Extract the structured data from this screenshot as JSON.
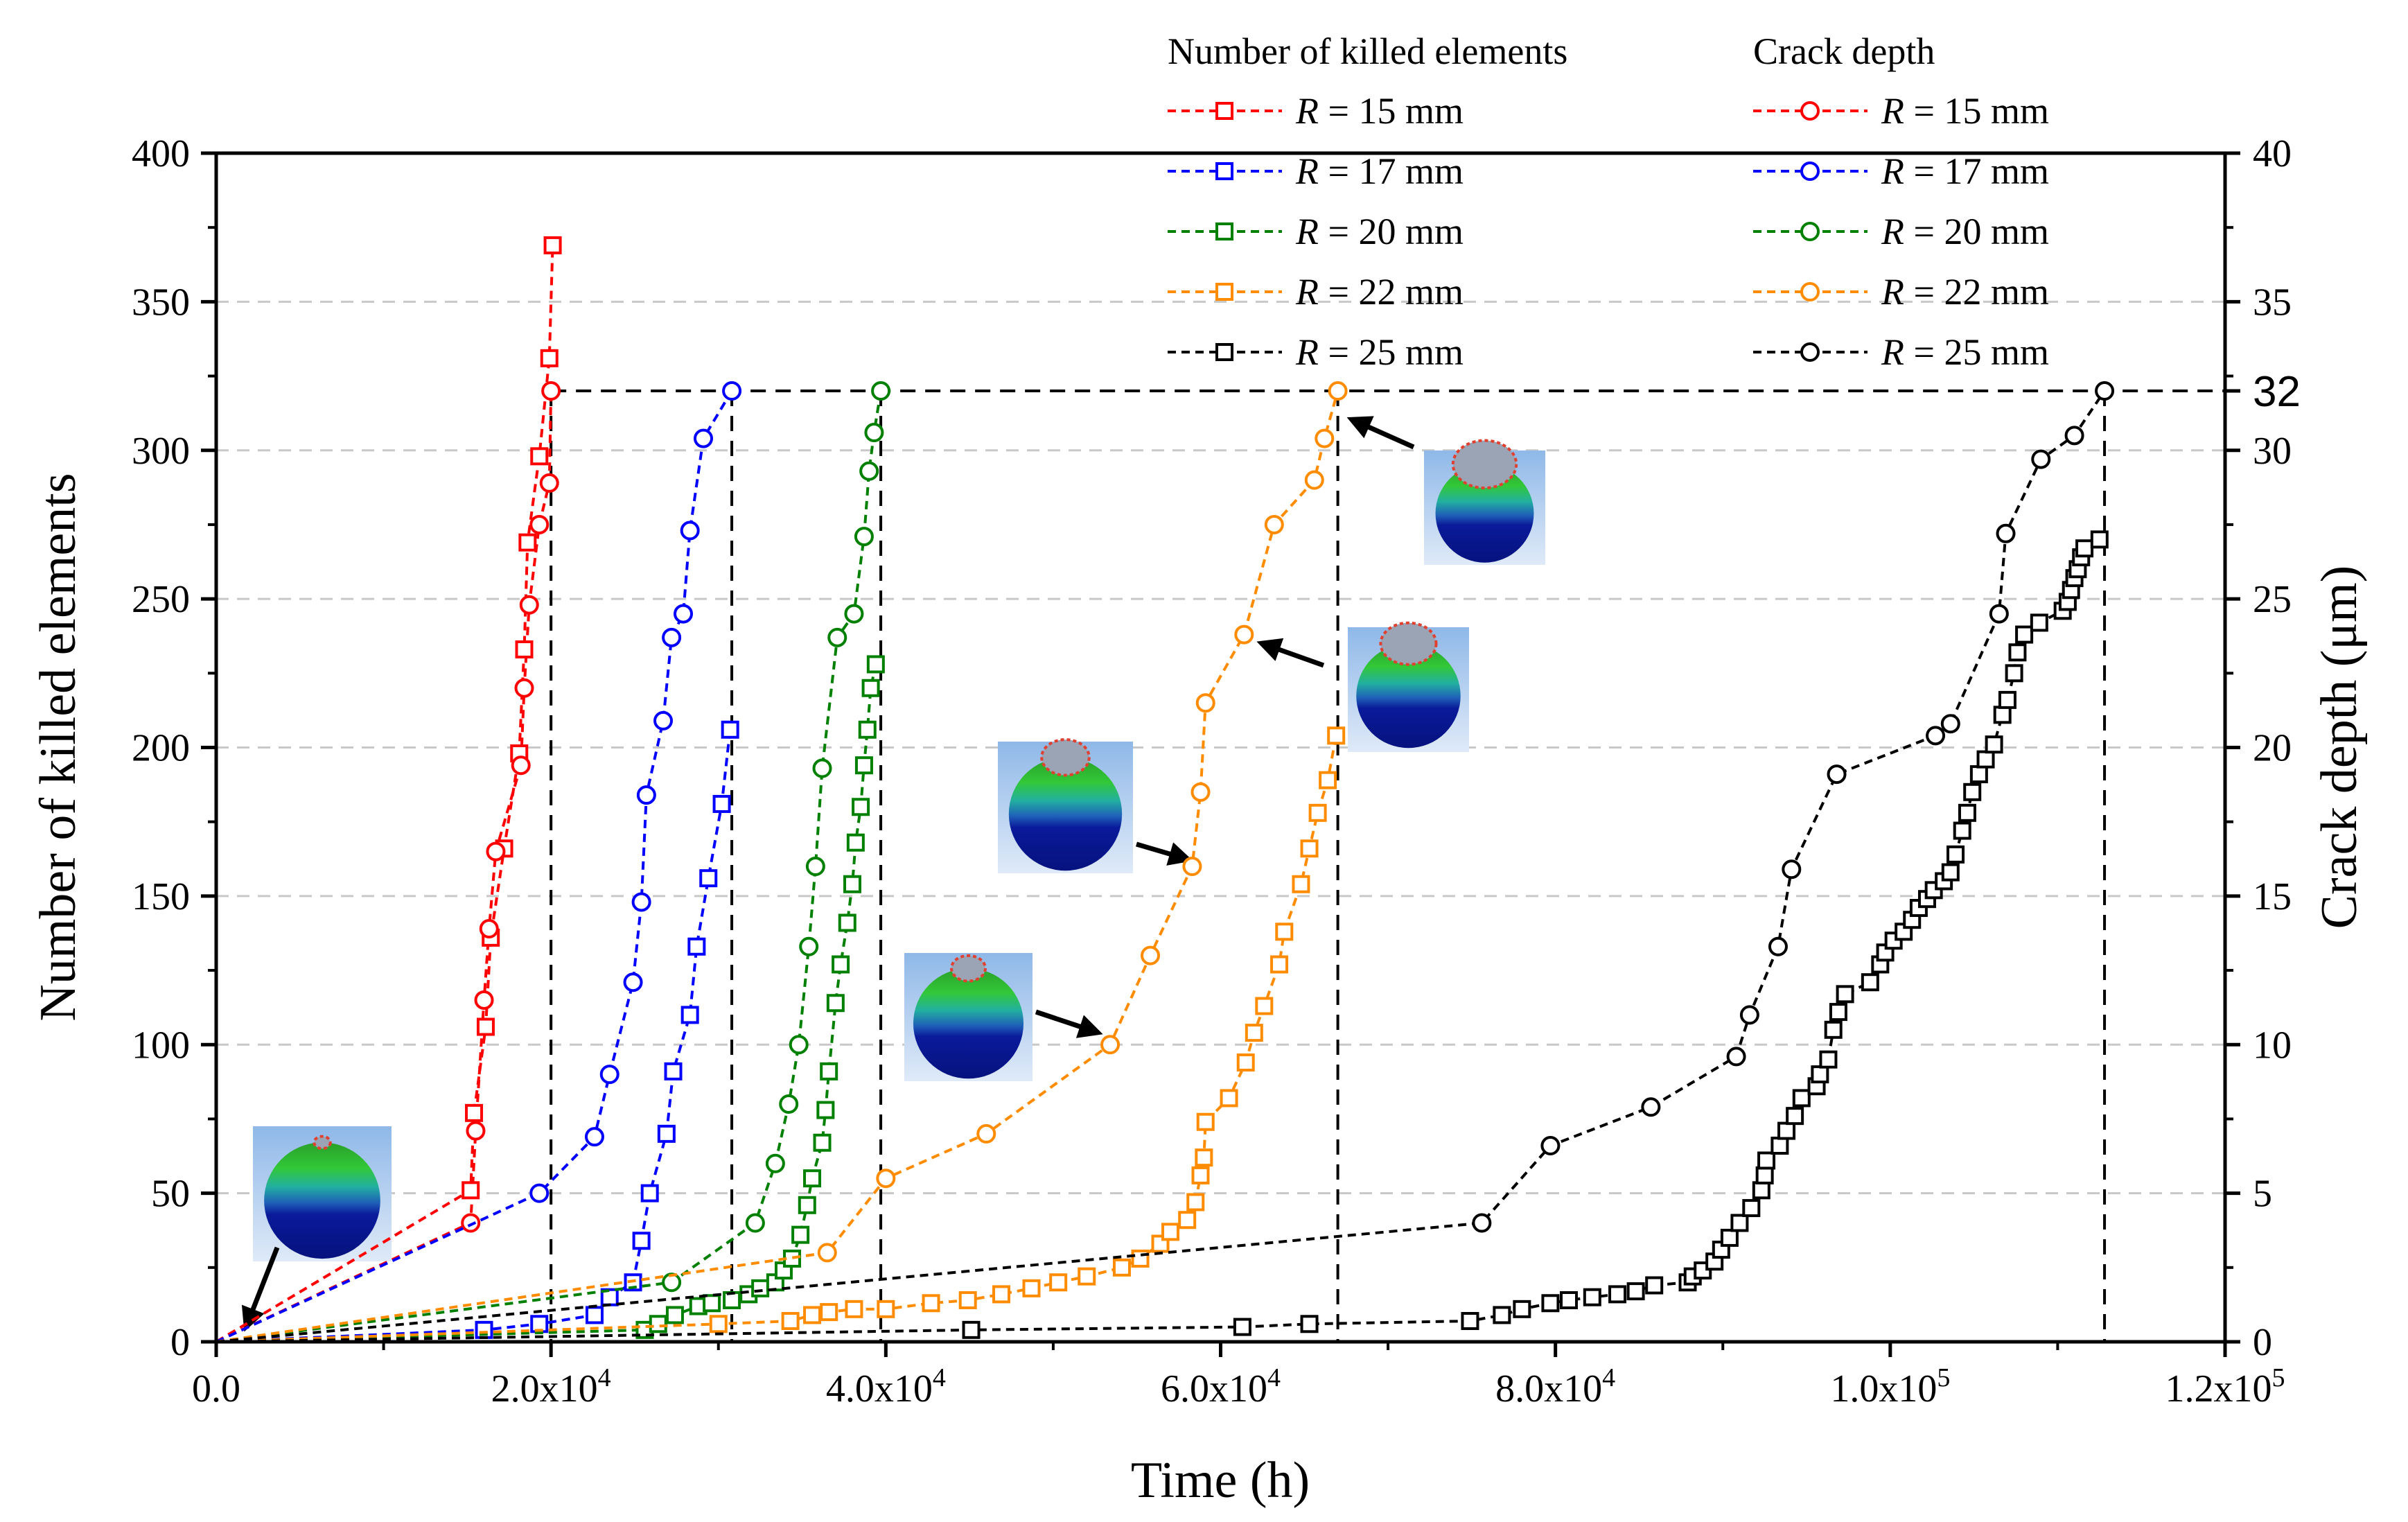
{
  "chart_data": {
    "type": "line",
    "xlabel": "Time (h)",
    "ylabel_left": "Number of killed elements",
    "ylabel_right": "Crack depth (μm)",
    "xlim": [
      0,
      120000
    ],
    "ylim_left": [
      0,
      400
    ],
    "ylim_right": [
      0,
      40
    ],
    "x_ticks": [
      {
        "v": 0,
        "base": "0.0",
        "exp": ""
      },
      {
        "v": 20000,
        "base": "2.0x10",
        "exp": "4"
      },
      {
        "v": 40000,
        "base": "4.0x10",
        "exp": "4"
      },
      {
        "v": 60000,
        "base": "6.0x10",
        "exp": "4"
      },
      {
        "v": 80000,
        "base": "8.0x10",
        "exp": "4"
      },
      {
        "v": 100000,
        "base": "1.0x10",
        "exp": "5"
      },
      {
        "v": 120000,
        "base": "1.2x10",
        "exp": "5"
      }
    ],
    "y_left_ticks": [
      0,
      50,
      100,
      150,
      200,
      250,
      300,
      350,
      400
    ],
    "y_right_ticks": [
      0,
      5,
      10,
      15,
      20,
      25,
      30,
      35,
      40
    ],
    "threshold": {
      "label": "32",
      "value": 32
    },
    "legend": {
      "killed_heading": "Number of killed elements",
      "depth_heading": "Crack depth",
      "entries": [
        {
          "r": "R",
          "rest": " = 15 mm"
        },
        {
          "r": "R",
          "rest": " = 17 mm"
        },
        {
          "r": "R",
          "rest": " = 20 mm"
        },
        {
          "r": "R",
          "rest": " = 22 mm"
        },
        {
          "r": "R",
          "rest": " = 25 mm"
        }
      ]
    },
    "series": [
      {
        "name": "R = 15 mm",
        "color": "#ff0000",
        "end_x": 20000,
        "killed": [
          [
            0,
            0
          ],
          [
            15200,
            51
          ],
          [
            15400,
            77
          ],
          [
            16100,
            106
          ],
          [
            16400,
            136
          ],
          [
            17200,
            166
          ],
          [
            18100,
            198
          ],
          [
            18400,
            233
          ],
          [
            18600,
            269
          ],
          [
            19300,
            298
          ],
          [
            19900,
            331
          ],
          [
            20100,
            369
          ]
        ],
        "depth": [
          [
            0,
            0
          ],
          [
            15200,
            4.0
          ],
          [
            15500,
            7.1
          ],
          [
            16000,
            11.5
          ],
          [
            16300,
            13.9
          ],
          [
            16700,
            16.5
          ],
          [
            18200,
            19.4
          ],
          [
            18400,
            22.0
          ],
          [
            18700,
            24.8
          ],
          [
            19300,
            27.5
          ],
          [
            19900,
            28.9
          ],
          [
            20000,
            32.0
          ]
        ]
      },
      {
        "name": "R = 17 mm",
        "color": "#0000ff",
        "end_x": 30800,
        "killed": [
          [
            0,
            0
          ],
          [
            16000,
            4
          ],
          [
            19300,
            6
          ],
          [
            22600,
            9
          ],
          [
            23500,
            15
          ],
          [
            24900,
            20
          ],
          [
            25400,
            34
          ],
          [
            25900,
            50
          ],
          [
            26900,
            70
          ],
          [
            27300,
            91
          ],
          [
            28300,
            110
          ],
          [
            28700,
            133
          ],
          [
            29400,
            156
          ],
          [
            30200,
            181
          ],
          [
            30700,
            206
          ]
        ],
        "depth": [
          [
            0,
            0
          ],
          [
            19300,
            5.0
          ],
          [
            22600,
            6.9
          ],
          [
            23500,
            9.0
          ],
          [
            24900,
            12.1
          ],
          [
            25400,
            14.8
          ],
          [
            25700,
            18.4
          ],
          [
            26700,
            20.9
          ],
          [
            27200,
            23.7
          ],
          [
            27900,
            24.5
          ],
          [
            28300,
            27.3
          ],
          [
            29100,
            30.4
          ],
          [
            30800,
            32.0
          ]
        ]
      },
      {
        "name": "R = 20 mm",
        "color": "#008000",
        "end_x": 39700,
        "killed": [
          [
            0,
            0
          ],
          [
            25600,
            4
          ],
          [
            26400,
            6
          ],
          [
            27400,
            9
          ],
          [
            28800,
            12
          ],
          [
            29600,
            13
          ],
          [
            30800,
            14
          ],
          [
            31800,
            16
          ],
          [
            32500,
            18
          ],
          [
            33400,
            20
          ],
          [
            33900,
            24
          ],
          [
            34400,
            28
          ],
          [
            34900,
            36
          ],
          [
            35300,
            46
          ],
          [
            35600,
            55
          ],
          [
            36200,
            67
          ],
          [
            36400,
            78
          ],
          [
            36600,
            91
          ],
          [
            37000,
            114
          ],
          [
            37300,
            127
          ],
          [
            37700,
            141
          ],
          [
            38000,
            154
          ],
          [
            38200,
            168
          ],
          [
            38500,
            180
          ],
          [
            38700,
            194
          ],
          [
            38900,
            206
          ],
          [
            39100,
            220
          ],
          [
            39400,
            228
          ]
        ],
        "depth": [
          [
            0,
            0
          ],
          [
            27200,
            2.0
          ],
          [
            32200,
            4.0
          ],
          [
            33400,
            6.0
          ],
          [
            34200,
            8.0
          ],
          [
            34800,
            10.0
          ],
          [
            35400,
            13.3
          ],
          [
            35800,
            16.0
          ],
          [
            36200,
            19.3
          ],
          [
            37100,
            23.7
          ],
          [
            38100,
            24.5
          ],
          [
            38700,
            27.1
          ],
          [
            39000,
            29.3
          ],
          [
            39300,
            30.6
          ],
          [
            39700,
            32.0
          ]
        ]
      },
      {
        "name": "R = 22 mm",
        "color": "#ff8c00",
        "end_x": 67000,
        "killed": [
          [
            0,
            0
          ],
          [
            30000,
            6
          ],
          [
            34300,
            7
          ],
          [
            35600,
            9
          ],
          [
            36600,
            10
          ],
          [
            38100,
            11
          ],
          [
            40000,
            11
          ],
          [
            42700,
            13
          ],
          [
            44900,
            14
          ],
          [
            46900,
            16
          ],
          [
            48700,
            18
          ],
          [
            50300,
            20
          ],
          [
            52000,
            22
          ],
          [
            54100,
            25
          ],
          [
            55200,
            28
          ],
          [
            56400,
            33
          ],
          [
            57000,
            37
          ],
          [
            58000,
            41
          ],
          [
            58500,
            47
          ],
          [
            58800,
            56
          ],
          [
            59000,
            62
          ],
          [
            59100,
            74
          ],
          [
            60500,
            82
          ],
          [
            61500,
            94
          ],
          [
            62000,
            104
          ],
          [
            62600,
            113
          ],
          [
            63500,
            127
          ],
          [
            63800,
            138
          ],
          [
            64800,
            154
          ],
          [
            65300,
            166
          ],
          [
            65800,
            178
          ],
          [
            66400,
            189
          ],
          [
            66900,
            204
          ]
        ],
        "depth": [
          [
            0,
            0
          ],
          [
            36500,
            3.0
          ],
          [
            40000,
            5.5
          ],
          [
            46000,
            7.0
          ],
          [
            53400,
            10.0
          ],
          [
            55800,
            13.0
          ],
          [
            58300,
            16.0
          ],
          [
            58800,
            18.5
          ],
          [
            59100,
            21.5
          ],
          [
            61400,
            23.8
          ],
          [
            63200,
            27.5
          ],
          [
            65600,
            29.0
          ],
          [
            66200,
            30.4
          ],
          [
            67000,
            32.0
          ]
        ]
      },
      {
        "name": "R = 25 mm",
        "color": "#000000",
        "end_x": 112800,
        "killed": [
          [
            0,
            0
          ],
          [
            45100,
            4
          ],
          [
            61300,
            5
          ],
          [
            65300,
            6
          ],
          [
            74900,
            7
          ],
          [
            76800,
            9
          ],
          [
            78000,
            11
          ],
          [
            79700,
            13
          ],
          [
            80800,
            14
          ],
          [
            82200,
            15
          ],
          [
            83700,
            16
          ],
          [
            84800,
            17
          ],
          [
            85900,
            19
          ],
          [
            87900,
            20
          ],
          [
            88200,
            22
          ],
          [
            88800,
            24
          ],
          [
            89500,
            27
          ],
          [
            89900,
            31
          ],
          [
            90400,
            35
          ],
          [
            91000,
            40
          ],
          [
            91700,
            45
          ],
          [
            92300,
            51
          ],
          [
            92500,
            56
          ],
          [
            92600,
            61
          ],
          [
            93400,
            66
          ],
          [
            93800,
            71
          ],
          [
            94300,
            76
          ],
          [
            94700,
            82
          ],
          [
            95600,
            86
          ],
          [
            95800,
            90
          ],
          [
            96300,
            95
          ],
          [
            96600,
            105
          ],
          [
            96900,
            111
          ],
          [
            97300,
            117
          ],
          [
            98800,
            121
          ],
          [
            99400,
            127
          ],
          [
            99700,
            131
          ],
          [
            100200,
            135
          ],
          [
            100800,
            138
          ],
          [
            101300,
            142
          ],
          [
            101700,
            146
          ],
          [
            102200,
            149
          ],
          [
            102600,
            152
          ],
          [
            103200,
            155
          ],
          [
            103600,
            158
          ],
          [
            103900,
            164
          ],
          [
            104300,
            172
          ],
          [
            104600,
            178
          ],
          [
            104900,
            185
          ],
          [
            105300,
            191
          ],
          [
            105700,
            196
          ],
          [
            106200,
            201
          ],
          [
            106700,
            211
          ],
          [
            107000,
            216
          ],
          [
            107400,
            225
          ],
          [
            107600,
            232
          ],
          [
            108000,
            238
          ],
          [
            108900,
            242
          ],
          [
            110300,
            246
          ],
          [
            110600,
            249
          ],
          [
            110800,
            253
          ],
          [
            111000,
            257
          ],
          [
            111200,
            260
          ],
          [
            111400,
            264
          ],
          [
            111600,
            267
          ],
          [
            112500,
            270
          ]
        ],
        "depth": [
          [
            0,
            0
          ],
          [
            75600,
            4.0
          ],
          [
            79700,
            6.6
          ],
          [
            85700,
            7.9
          ],
          [
            90800,
            9.6
          ],
          [
            91600,
            11.0
          ],
          [
            93300,
            13.3
          ],
          [
            94100,
            15.9
          ],
          [
            96800,
            19.1
          ],
          [
            102700,
            20.4
          ],
          [
            103600,
            20.8
          ],
          [
            106500,
            24.5
          ],
          [
            106900,
            27.2
          ],
          [
            109000,
            29.7
          ],
          [
            111000,
            30.5
          ],
          [
            112800,
            32.0
          ]
        ]
      }
    ]
  }
}
